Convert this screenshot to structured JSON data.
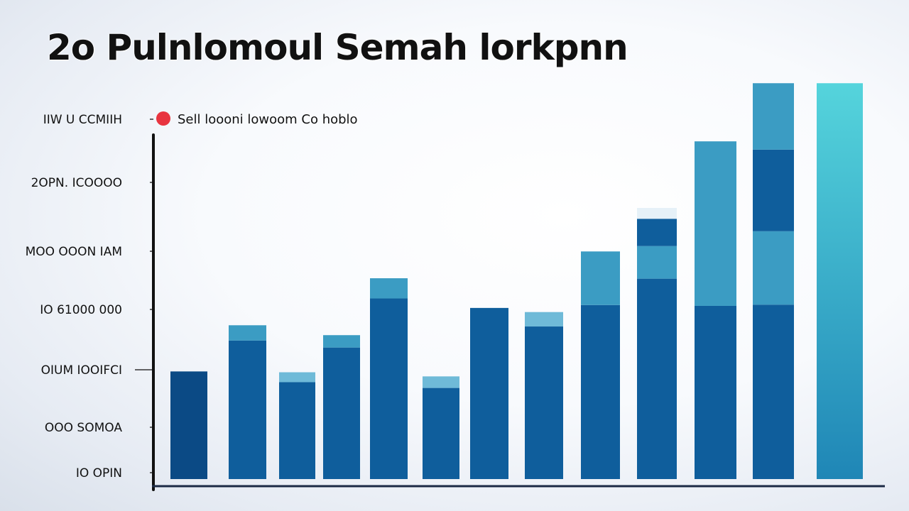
{
  "chart_data": {
    "type": "bar",
    "title": "2o  Pulnlomoul Semah lorkpnn",
    "legend": {
      "label": "Sell loooni lowoom Co hoblo",
      "marker_color": "#e8343f",
      "position": "top-left"
    },
    "y_tick_labels": [
      "IIW U CCMIIH",
      "2OPN. ICOOOO",
      "MOO OOON IAM",
      "IO  61000 000",
      "OIUM  IOOIFCI",
      "OOO  SOMOA",
      "IO OPIN"
    ],
    "ylim": [
      0,
      100
    ],
    "grid": false,
    "colors": {
      "base": "#0f5e9c",
      "cap": "#3b9cc3",
      "dark": "#0b4a85",
      "light_cap": "#6fbad8",
      "accent_top": "#55d4dc"
    },
    "bars": [
      {
        "value": 26.1,
        "segments": [
          26.1
        ]
      },
      {
        "value": 37.3,
        "segments": [
          33.6,
          3.7
        ]
      },
      {
        "value": 25.9,
        "segments": [
          23.5,
          2.4
        ]
      },
      {
        "value": 34.9,
        "segments": [
          31.9,
          3.0
        ]
      },
      {
        "value": 48.7,
        "segments": [
          43.8,
          4.9
        ]
      },
      {
        "value": 24.9,
        "segments": [
          22.1,
          2.8
        ]
      },
      {
        "value": 41.5,
        "segments": [
          41.5
        ]
      },
      {
        "value": 40.5,
        "segments": [
          37.0,
          3.5
        ]
      },
      {
        "value": 55.2,
        "segments": [
          42.2,
          13.0
        ]
      },
      {
        "value": 63.1,
        "segments": [
          48.6,
          7.9,
          6.6
        ]
      },
      {
        "value": 81.9,
        "segments": [
          42.0,
          39.9
        ]
      },
      {
        "value": 96.0,
        "segments": [
          42.3,
          17.8,
          19.8,
          16.1
        ]
      },
      {
        "value": 96.0,
        "segments": [
          96.0
        ]
      }
    ]
  }
}
